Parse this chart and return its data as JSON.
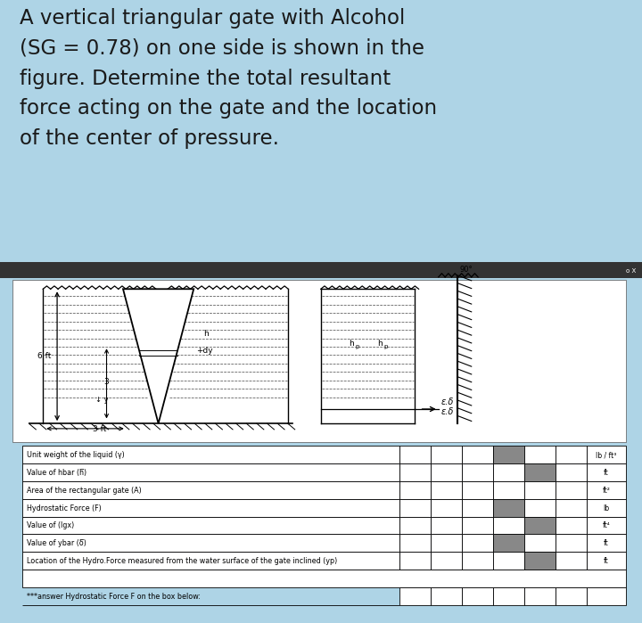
{
  "title_text": "A vertical triangular gate with Alcohol\n(SG = 0.78) on one side is shown in the\nfigure. Determine the total resultant\nforce acting on the gate and the location\nof the center of pressure.",
  "title_bg_color": "#aed4e6",
  "diagram_outer_color": "#111111",
  "diagram_inner_bg": "#ffffff",
  "table_rows": [
    {
      "label": "Unit weight of the liquid (γ)",
      "units_left": "lb",
      "slash": " / ",
      "units_right": "ft³",
      "dark_pattern": [
        false,
        false,
        false,
        true,
        false,
        false
      ]
    },
    {
      "label": "Value of hbar (h̅)",
      "units_left": "ft",
      "slash": "",
      "units_right": "",
      "dark_pattern": [
        false,
        false,
        false,
        false,
        true,
        false
      ]
    },
    {
      "label": "Area of the rectangular gate (A)",
      "units_left": "ft²",
      "slash": "",
      "units_right": "",
      "dark_pattern": [
        false,
        false,
        false,
        false,
        false,
        false
      ]
    },
    {
      "label": "Hydrostatic Force (F)",
      "units_left": "lb",
      "slash": "",
      "units_right": "",
      "dark_pattern": [
        false,
        false,
        false,
        true,
        false,
        false
      ]
    },
    {
      "label": "Value of (Igx)",
      "units_left": "ft⁴",
      "slash": "",
      "units_right": "",
      "dark_pattern": [
        false,
        false,
        false,
        false,
        true,
        false
      ]
    },
    {
      "label": "Value of ybar (ẟ̅)",
      "units_left": "ft",
      "slash": "",
      "units_right": "",
      "dark_pattern": [
        false,
        false,
        false,
        true,
        false,
        false
      ]
    },
    {
      "label": "Location of the Hydro.Force measured from the water surface of the gate inclined (yp)",
      "units_left": "ft",
      "slash": "",
      "units_right": "",
      "dark_pattern": [
        false,
        false,
        false,
        false,
        true,
        false
      ]
    }
  ],
  "answer_row": "***answer Hydrostatic Force F on the box below:",
  "dark_color": "#888888"
}
